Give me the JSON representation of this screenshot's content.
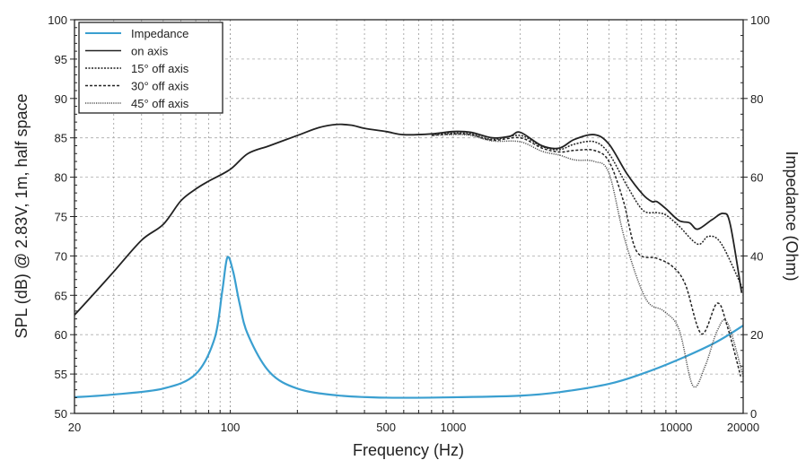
{
  "chart_data": {
    "type": "line",
    "title": "",
    "xlabel": "Frequency (Hz)",
    "ylabel": "SPL (dB) @ 2.83V, 1m, half space",
    "y2label": "Impedance (Ohm)",
    "xscale": "log",
    "xlim": [
      20,
      20000
    ],
    "ylim": [
      50,
      100
    ],
    "y2lim": [
      0,
      100
    ],
    "xticks": [
      20,
      100,
      500,
      1000,
      10000,
      20000
    ],
    "yticks": [
      50,
      55,
      60,
      65,
      70,
      75,
      80,
      85,
      90,
      95,
      100
    ],
    "y2ticks": [
      0,
      20,
      40,
      60,
      80,
      100
    ],
    "grid": true,
    "legend_position": "top-left",
    "colors": {
      "impedance": "#3a9fd0",
      "spl": "#222222"
    },
    "series": [
      {
        "name": "Impedance",
        "axis": "right",
        "style": "solid",
        "color": "#3a9fd0",
        "x": [
          20,
          30,
          50,
          70,
          85,
          92,
          97,
          103,
          110,
          120,
          150,
          200,
          300,
          500,
          1000,
          2000,
          3000,
          5000,
          7000,
          10000,
          15000,
          20000
        ],
        "y": [
          4.1,
          4.8,
          6.3,
          10,
          19,
          31,
          39.6,
          36,
          28,
          20,
          10.5,
          6.3,
          4.6,
          4.0,
          4.1,
          4.5,
          5.4,
          7.5,
          10,
          13.4,
          18,
          22.3
        ]
      },
      {
        "name": "on axis",
        "axis": "left",
        "style": "solid",
        "x": [
          20,
          25,
          30,
          40,
          50,
          60,
          70,
          80,
          100,
          120,
          150,
          200,
          250,
          300,
          350,
          400,
          500,
          600,
          800,
          1000,
          1200,
          1500,
          1800,
          2000,
          2500,
          3000,
          3500,
          4300,
          5000,
          6000,
          7100,
          7800,
          8200,
          9000,
          10300,
          11500,
          12500,
          14500,
          16300,
          17500,
          19700
        ],
        "y": [
          62.5,
          65.5,
          68,
          72,
          74,
          77,
          78.5,
          79.5,
          81,
          83,
          84,
          85.3,
          86.3,
          86.7,
          86.6,
          86.2,
          85.8,
          85.4,
          85.5,
          85.8,
          85.7,
          85,
          85.2,
          85.7,
          84,
          83.7,
          84.8,
          85.4,
          84.2,
          80.5,
          77.8,
          76.9,
          76.9,
          76,
          74.5,
          74.2,
          73.4,
          74.6,
          75.4,
          74,
          65.3
        ]
      },
      {
        "name": "15° off axis",
        "axis": "left",
        "style": "dotted",
        "x": [
          800,
          1000,
          1200,
          1500,
          2000,
          2500,
          3000,
          3500,
          4300,
          5000,
          6000,
          7100,
          8200,
          9000,
          10300,
          12500,
          14000,
          16000,
          20000
        ],
        "y": [
          85.4,
          85.6,
          85.5,
          84.8,
          85.3,
          83.9,
          83.5,
          84.2,
          84.5,
          83,
          79,
          75.8,
          75.5,
          75.2,
          73.8,
          71.5,
          72.5,
          71.5,
          65.7
        ]
      },
      {
        "name": "30° off axis",
        "axis": "left",
        "style": "dashed",
        "x": [
          800,
          1000,
          1200,
          1500,
          2000,
          2500,
          3000,
          3500,
          4300,
          5000,
          5800,
          6650,
          8200,
          9600,
          11000,
          13000,
          15300,
          17000,
          19500
        ],
        "y": [
          85.3,
          85.5,
          85.4,
          84.7,
          85,
          83.7,
          83.2,
          83.4,
          83.4,
          82,
          77,
          70.6,
          69.7,
          68.7,
          66.4,
          60.1,
          64,
          61,
          54.7
        ]
      },
      {
        "name": "45° off axis",
        "axis": "left",
        "style": "fine-dotted",
        "x": [
          800,
          1000,
          1200,
          1500,
          2000,
          2500,
          3000,
          3500,
          4300,
          5000,
          5900,
          7300,
          8800,
          10300,
          11900,
          13500,
          15300,
          17000,
          20000
        ],
        "y": [
          85.3,
          85.4,
          85.3,
          84.6,
          84.5,
          83.3,
          82.8,
          82.2,
          82,
          80.5,
          72,
          64.6,
          63,
          60.7,
          53.5,
          56,
          60.5,
          61.5,
          54.7
        ]
      }
    ]
  }
}
